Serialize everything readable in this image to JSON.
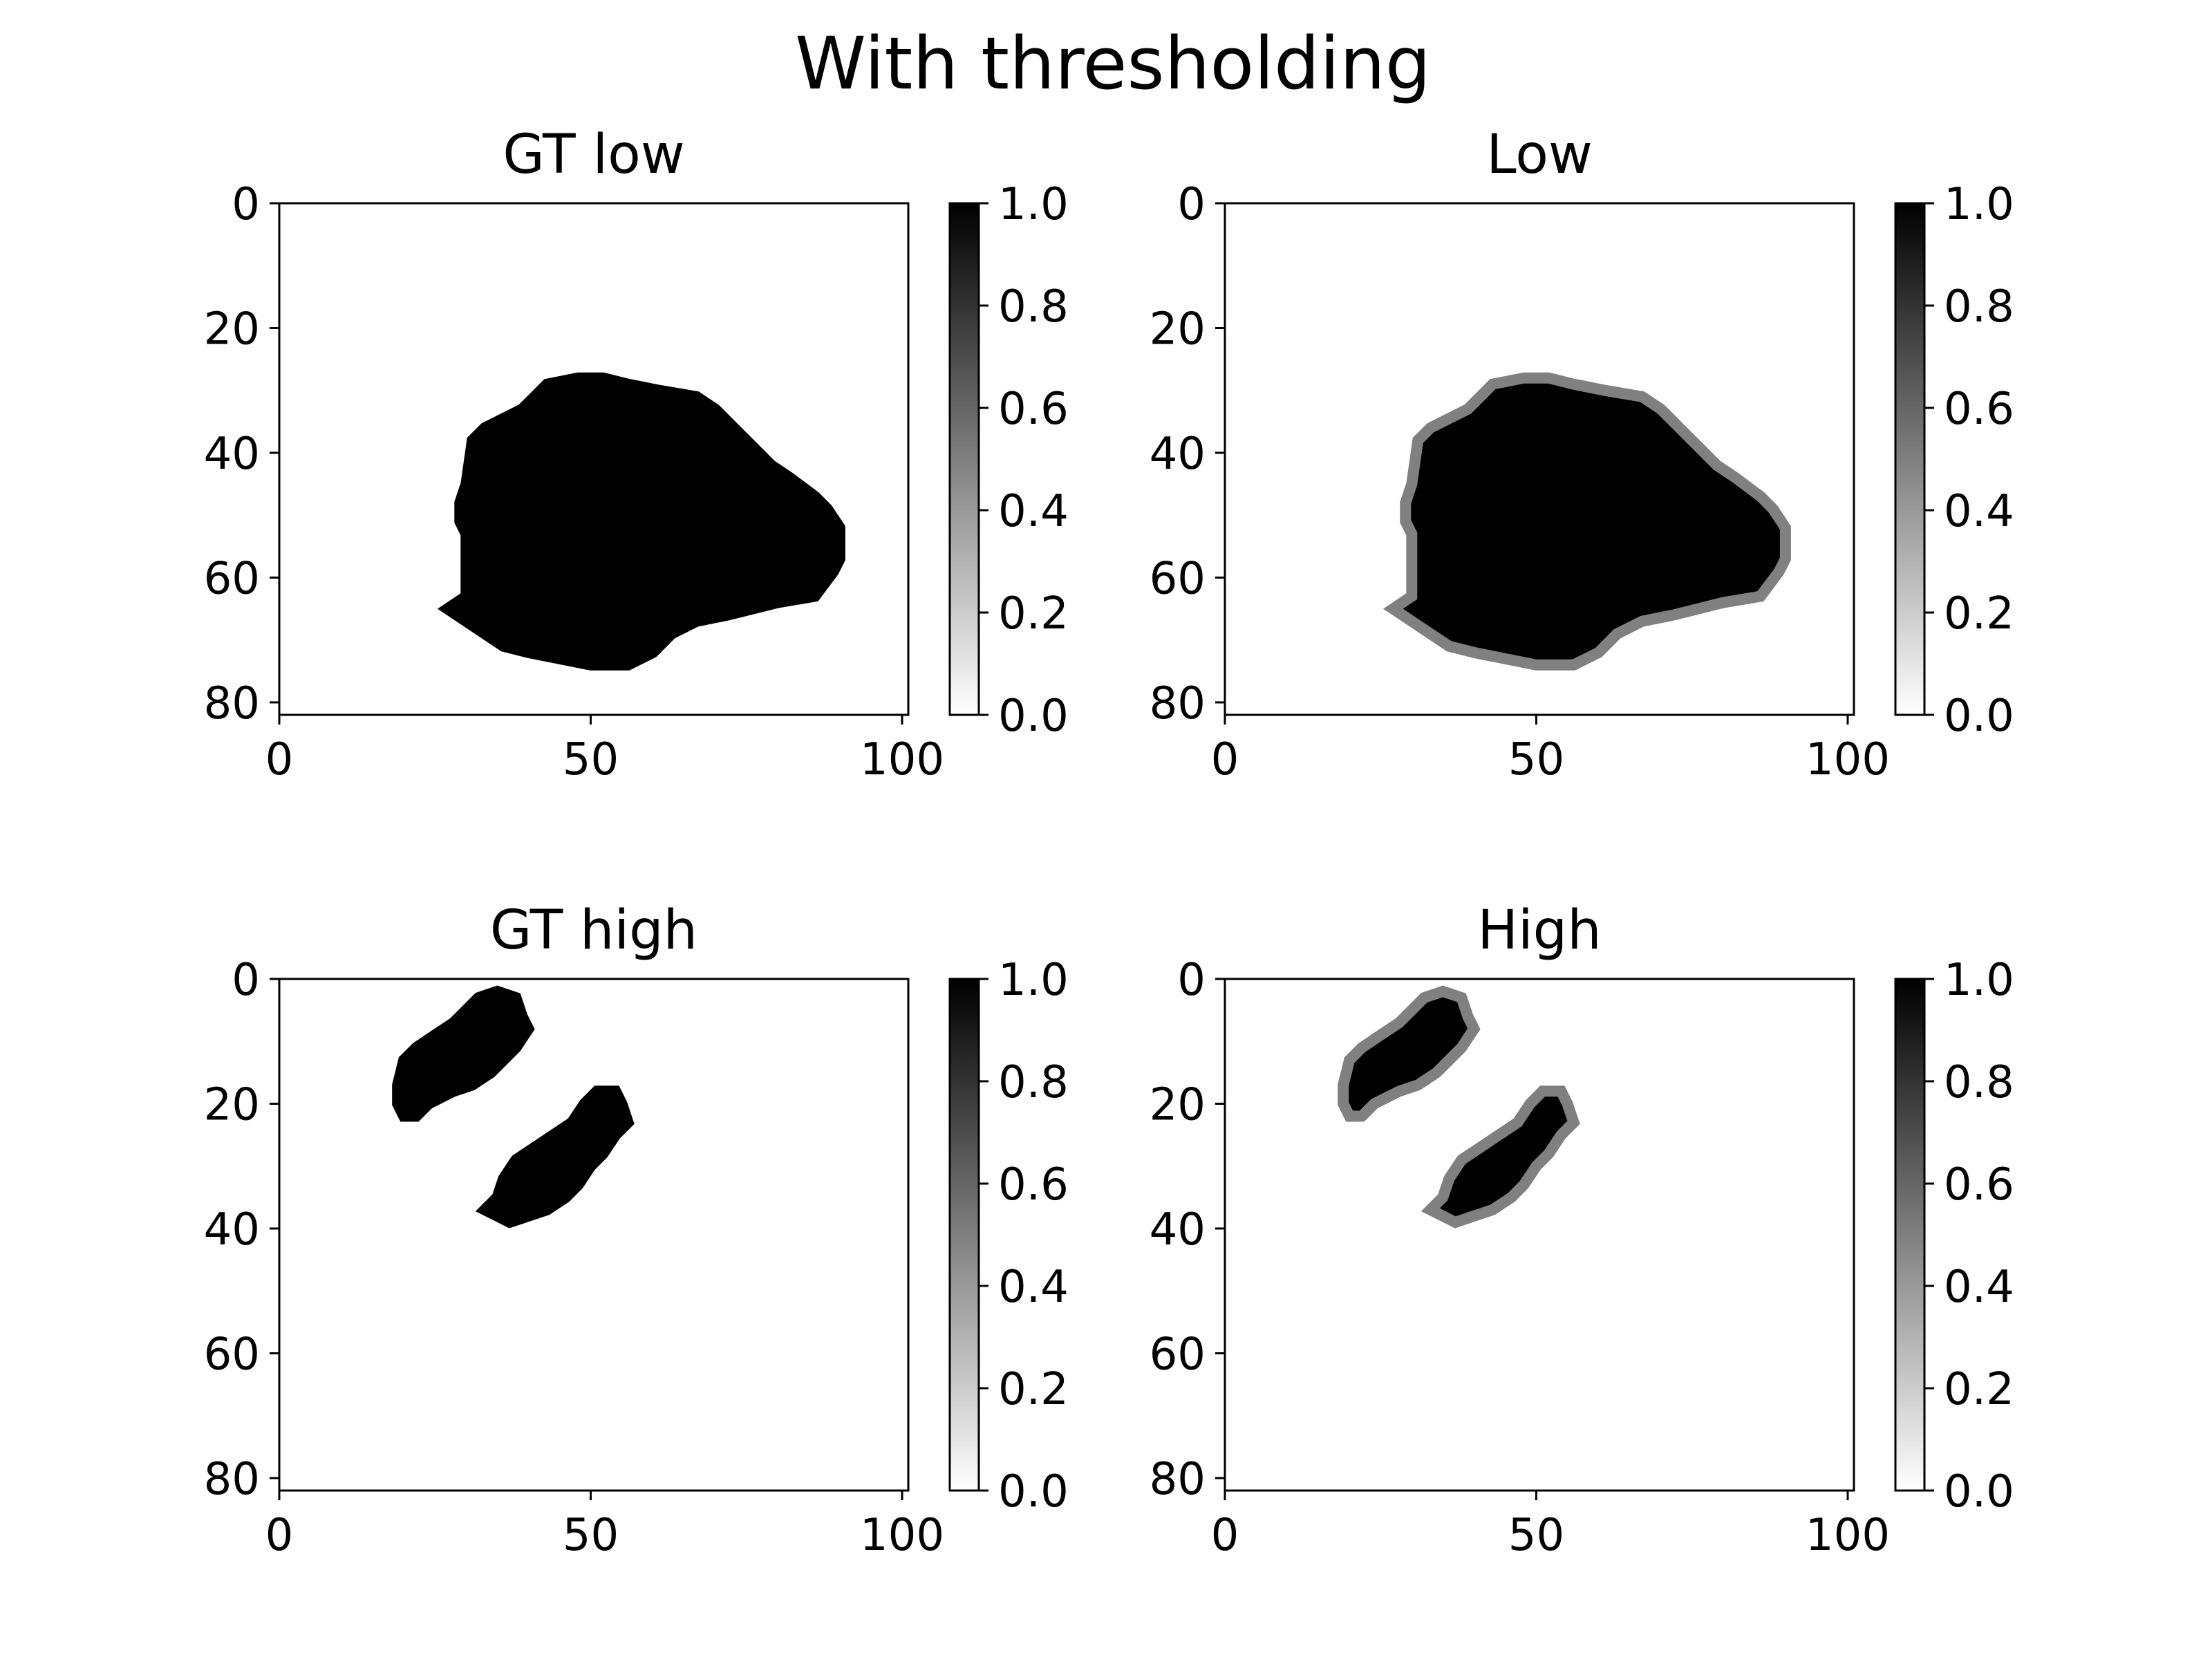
{
  "chart_data": {
    "title": "With thresholding",
    "panels": [
      {
        "type": "heatmap",
        "title": "GT low",
        "xlim": [
          0,
          101
        ],
        "ylim": [
          82,
          0
        ],
        "xticks": [
          0,
          50,
          100
        ],
        "yticks": [
          0,
          20,
          40,
          60,
          80
        ],
        "colorbar": {
          "min": 0.0,
          "max": 1.0,
          "ticks": [
            "0.0",
            "0.2",
            "0.4",
            "0.6",
            "0.8",
            "1.0"
          ],
          "cmap": "gray_r"
        },
        "edge_value": 1.0,
        "blobs": [
          {
            "value": 1.0,
            "outline": [
              [
                27,
                65
              ],
              [
                30,
                63
              ],
              [
                30,
                53
              ],
              [
                29,
                51
              ],
              [
                29,
                48
              ],
              [
                30,
                45
              ],
              [
                31,
                38
              ],
              [
                33,
                36
              ],
              [
                35,
                35
              ],
              [
                37,
                34
              ],
              [
                39,
                33
              ],
              [
                41,
                31
              ],
              [
                43,
                29
              ],
              [
                48,
                28
              ],
              [
                52,
                28
              ],
              [
                56,
                29
              ],
              [
                61,
                30
              ],
              [
                67,
                31
              ],
              [
                70,
                33
              ],
              [
                73,
                36
              ],
              [
                76,
                39
              ],
              [
                79,
                42
              ],
              [
                82,
                44
              ],
              [
                86,
                47
              ],
              [
                88,
                49
              ],
              [
                90,
                52
              ],
              [
                90,
                57
              ],
              [
                89,
                59
              ],
              [
                86,
                63
              ],
              [
                80,
                64
              ],
              [
                76,
                65
              ],
              [
                72,
                66
              ],
              [
                67,
                67
              ],
              [
                63,
                69
              ],
              [
                60,
                72
              ],
              [
                56,
                74
              ],
              [
                50,
                74
              ],
              [
                45,
                73
              ],
              [
                40,
                72
              ],
              [
                36,
                71
              ],
              [
                33,
                69
              ],
              [
                30,
                67
              ]
            ]
          }
        ]
      },
      {
        "type": "heatmap",
        "title": "Low",
        "xlim": [
          0,
          101
        ],
        "ylim": [
          82,
          0
        ],
        "xticks": [
          0,
          50,
          100
        ],
        "yticks": [
          0,
          20,
          40,
          60,
          80
        ],
        "colorbar": {
          "min": 0.0,
          "max": 1.0,
          "ticks": [
            "0.0",
            "0.2",
            "0.4",
            "0.6",
            "0.8",
            "1.0"
          ],
          "cmap": "gray_r"
        },
        "edge_value": 0.5,
        "blobs": [
          {
            "value": 1.0,
            "outline": [
              [
                27,
                65
              ],
              [
                30,
                63
              ],
              [
                30,
                53
              ],
              [
                29,
                51
              ],
              [
                29,
                48
              ],
              [
                30,
                45
              ],
              [
                31,
                38
              ],
              [
                33,
                36
              ],
              [
                35,
                35
              ],
              [
                37,
                34
              ],
              [
                39,
                33
              ],
              [
                41,
                31
              ],
              [
                43,
                29
              ],
              [
                48,
                28
              ],
              [
                52,
                28
              ],
              [
                56,
                29
              ],
              [
                61,
                30
              ],
              [
                67,
                31
              ],
              [
                70,
                33
              ],
              [
                73,
                36
              ],
              [
                76,
                39
              ],
              [
                79,
                42
              ],
              [
                82,
                44
              ],
              [
                86,
                47
              ],
              [
                88,
                49
              ],
              [
                90,
                52
              ],
              [
                90,
                57
              ],
              [
                89,
                59
              ],
              [
                86,
                63
              ],
              [
                80,
                64
              ],
              [
                76,
                65
              ],
              [
                72,
                66
              ],
              [
                67,
                67
              ],
              [
                63,
                69
              ],
              [
                60,
                72
              ],
              [
                56,
                74
              ],
              [
                50,
                74
              ],
              [
                45,
                73
              ],
              [
                40,
                72
              ],
              [
                36,
                71
              ],
              [
                33,
                69
              ],
              [
                30,
                67
              ]
            ]
          }
        ]
      },
      {
        "type": "heatmap",
        "title": "GT high",
        "xlim": [
          0,
          101
        ],
        "ylim": [
          82,
          0
        ],
        "xticks": [
          0,
          50,
          100
        ],
        "yticks": [
          0,
          20,
          40,
          60,
          80
        ],
        "colorbar": {
          "min": 0.0,
          "max": 1.0,
          "ticks": [
            "0.0",
            "0.2",
            "0.4",
            "0.6",
            "0.8",
            "1.0"
          ],
          "cmap": "gray_r"
        },
        "edge_value": 1.0,
        "blobs": [
          {
            "value": 1.0,
            "outline": [
              [
                19,
                17
              ],
              [
                20,
                13
              ],
              [
                22,
                11
              ],
              [
                25,
                9
              ],
              [
                28,
                7
              ],
              [
                30,
                5
              ],
              [
                32,
                3
              ],
              [
                35,
                2
              ],
              [
                38,
                3
              ],
              [
                39,
                6
              ],
              [
                40,
                8
              ],
              [
                38,
                11
              ],
              [
                36,
                13
              ],
              [
                34,
                15
              ],
              [
                31,
                17
              ],
              [
                28,
                18
              ],
              [
                24,
                20
              ],
              [
                22,
                22
              ],
              [
                20,
                22
              ],
              [
                19,
                20
              ]
            ]
          },
          {
            "value": 1.0,
            "outline": [
              [
                33,
                37
              ],
              [
                35,
                35
              ],
              [
                36,
                32
              ],
              [
                38,
                29
              ],
              [
                41,
                27
              ],
              [
                44,
                25
              ],
              [
                47,
                23
              ],
              [
                49,
                20
              ],
              [
                51,
                18
              ],
              [
                54,
                18
              ],
              [
                55,
                20
              ],
              [
                56,
                23
              ],
              [
                54,
                25
              ],
              [
                52,
                28
              ],
              [
                50,
                30
              ],
              [
                48,
                33
              ],
              [
                46,
                35
              ],
              [
                43,
                37
              ],
              [
                40,
                38
              ],
              [
                37,
                39
              ],
              [
                35,
                38
              ]
            ]
          }
        ]
      },
      {
        "type": "heatmap",
        "title": "High",
        "xlim": [
          0,
          101
        ],
        "ylim": [
          82,
          0
        ],
        "xticks": [
          0,
          50,
          100
        ],
        "yticks": [
          0,
          20,
          40,
          60,
          80
        ],
        "colorbar": {
          "min": 0.0,
          "max": 1.0,
          "ticks": [
            "0.0",
            "0.2",
            "0.4",
            "0.6",
            "0.8",
            "1.0"
          ],
          "cmap": "gray_r"
        },
        "edge_value": 0.5,
        "blobs": [
          {
            "value": 1.0,
            "outline": [
              [
                19,
                17
              ],
              [
                20,
                13
              ],
              [
                22,
                11
              ],
              [
                25,
                9
              ],
              [
                28,
                7
              ],
              [
                30,
                5
              ],
              [
                32,
                3
              ],
              [
                35,
                2
              ],
              [
                38,
                3
              ],
              [
                39,
                6
              ],
              [
                40,
                8
              ],
              [
                38,
                11
              ],
              [
                36,
                13
              ],
              [
                34,
                15
              ],
              [
                31,
                17
              ],
              [
                28,
                18
              ],
              [
                24,
                20
              ],
              [
                22,
                22
              ],
              [
                20,
                22
              ],
              [
                19,
                20
              ]
            ]
          },
          {
            "value": 1.0,
            "outline": [
              [
                33,
                37
              ],
              [
                35,
                35
              ],
              [
                36,
                32
              ],
              [
                38,
                29
              ],
              [
                41,
                27
              ],
              [
                44,
                25
              ],
              [
                47,
                23
              ],
              [
                49,
                20
              ],
              [
                51,
                18
              ],
              [
                54,
                18
              ],
              [
                55,
                20
              ],
              [
                56,
                23
              ],
              [
                54,
                25
              ],
              [
                52,
                28
              ],
              [
                50,
                30
              ],
              [
                48,
                33
              ],
              [
                46,
                35
              ],
              [
                43,
                37
              ],
              [
                40,
                38
              ],
              [
                37,
                39
              ],
              [
                35,
                38
              ]
            ]
          }
        ]
      }
    ]
  }
}
